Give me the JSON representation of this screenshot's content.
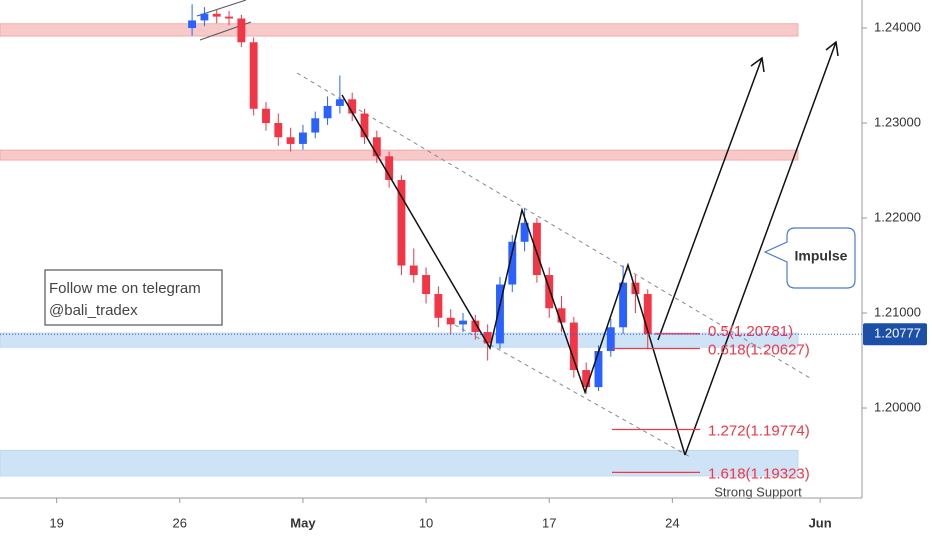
{
  "chart_data": {
    "type": "candlestick",
    "up_color": "#2962ff",
    "down_color": "#f23645",
    "xlim": [
      -2.3,
      32.7
    ],
    "xticks": [
      {
        "value": 0,
        "label": "19"
      },
      {
        "value": 5,
        "label": "26"
      },
      {
        "value": 10,
        "label": "May"
      },
      {
        "value": 15,
        "label": "10"
      },
      {
        "value": 20,
        "label": "17"
      },
      {
        "value": 25,
        "label": "24"
      },
      {
        "value": 31,
        "label": "Jun"
      }
    ],
    "ylim": [
      1.19053,
      1.24295
    ],
    "yticks": [
      {
        "value": 1.24,
        "label": "1.24000"
      },
      {
        "value": 1.23,
        "label": "1.23000"
      },
      {
        "value": 1.22,
        "label": "1.22000"
      },
      {
        "value": 1.21,
        "label": "1.21000"
      },
      {
        "value": 1.2,
        "label": "1.20000"
      }
    ],
    "x": [
      5.5,
      6,
      6.5,
      7,
      7.5,
      8,
      8.5,
      9,
      9.5,
      10,
      10.5,
      11,
      11.5,
      12,
      12.5,
      13,
      13.5,
      14,
      14.5,
      15,
      15.5,
      16,
      16.5,
      17,
      17.5,
      18,
      18.5,
      19,
      19.5,
      20,
      20.5,
      21,
      21.5,
      22,
      22.5,
      23,
      23.5,
      24
    ],
    "open": [
      1.24,
      1.2408,
      1.2415,
      1.2412,
      1.241,
      1.2385,
      1.2315,
      1.23,
      1.2285,
      1.2278,
      1.229,
      1.2305,
      1.2318,
      1.2325,
      1.231,
      1.2285,
      1.2265,
      1.224,
      1.215,
      1.214,
      1.212,
      1.2095,
      1.2088,
      1.2092,
      1.208,
      1.2068,
      1.213,
      1.2175,
      1.2195,
      1.214,
      1.2105,
      1.209,
      1.204,
      1.2022,
      1.206,
      1.2085,
      1.2132,
      1.212
    ],
    "high": [
      1.2425,
      1.2422,
      1.242,
      1.2418,
      1.2414,
      1.239,
      1.2322,
      1.231,
      1.2295,
      1.2298,
      1.2312,
      1.2328,
      1.235,
      1.2332,
      1.2315,
      1.2292,
      1.227,
      1.2245,
      1.2168,
      1.2148,
      1.2128,
      1.2104,
      1.21,
      1.2098,
      1.2088,
      1.2138,
      1.2182,
      1.221,
      1.22,
      1.2148,
      1.2118,
      1.2096,
      1.2048,
      1.2066,
      1.2094,
      1.215,
      1.214,
      1.2125
    ],
    "low": [
      1.2392,
      1.2402,
      1.2405,
      1.2403,
      1.238,
      1.2308,
      1.2292,
      1.2276,
      1.227,
      1.2272,
      1.2284,
      1.2298,
      1.231,
      1.2302,
      1.2278,
      1.2258,
      1.2232,
      1.214,
      1.2132,
      1.211,
      1.2085,
      1.2078,
      1.208,
      1.2072,
      1.205,
      1.2062,
      1.2122,
      1.2165,
      1.2132,
      1.2095,
      1.208,
      1.2032,
      1.2015,
      1.2018,
      1.2054,
      1.2078,
      1.21,
      1.2062
    ],
    "close": [
      1.2408,
      1.2415,
      1.2412,
      1.241,
      1.2385,
      1.2315,
      1.23,
      1.2285,
      1.2278,
      1.229,
      1.2305,
      1.2318,
      1.2325,
      1.231,
      1.2285,
      1.2265,
      1.224,
      1.215,
      1.214,
      1.212,
      1.2095,
      1.2088,
      1.2092,
      1.208,
      1.2068,
      1.213,
      1.2175,
      1.2195,
      1.214,
      1.2105,
      1.209,
      1.204,
      1.2022,
      1.206,
      1.2085,
      1.2132,
      1.212,
      1.20777
    ],
    "last_price": 1.20777,
    "zones": [
      {
        "from": 1.23915,
        "to": 1.24045,
        "color": "#f8c9c9"
      },
      {
        "from": 1.2261,
        "to": 1.22715,
        "color": "#f8c9c9"
      },
      {
        "from": 1.2064,
        "to": 1.2079,
        "color": "#cfe3f7"
      },
      {
        "from": 1.19285,
        "to": 1.19555,
        "color": "#cfe3f7"
      }
    ],
    "fib_levels": [
      {
        "level": 0.5,
        "price": 1.20781,
        "label": "0.5(1.20781)"
      },
      {
        "level": 0.618,
        "price": 1.20627,
        "label": "0.618(1.20627)"
      },
      {
        "level": 1.272,
        "price": 1.19774,
        "label": "1.272(1.19774)"
      },
      {
        "level": 1.618,
        "price": 1.19323,
        "label": "1.618(1.19323)"
      }
    ],
    "support_label": "Strong Support",
    "callout": "Impulse",
    "note": [
      "Follow me on telegram",
      "@bali_tradex"
    ]
  }
}
